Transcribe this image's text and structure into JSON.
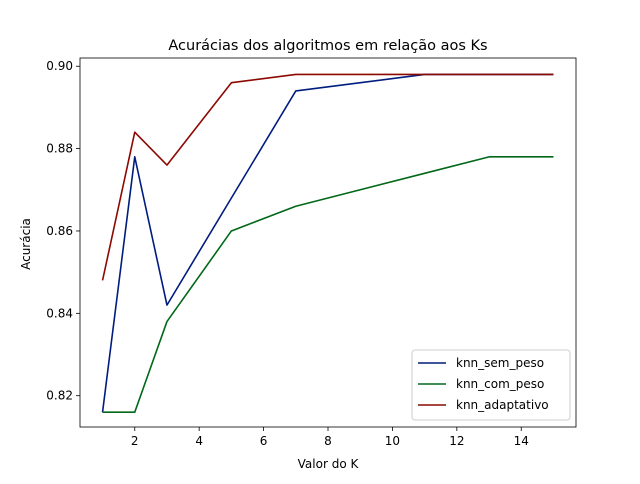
{
  "chart_data": {
    "type": "line",
    "title": "Acurácias dos algoritmos em relação aos Ks",
    "xlabel": "Valor do K",
    "ylabel": "Acurácia",
    "xlim": [
      0.3,
      15.7
    ],
    "ylim": [
      0.8124,
      0.902
    ],
    "xticks": [
      2,
      4,
      6,
      8,
      10,
      12,
      14
    ],
    "yticks": [
      0.82,
      0.84,
      0.86,
      0.88,
      0.9
    ],
    "ytick_labels": [
      "0.82",
      "0.84",
      "0.86",
      "0.88",
      "0.90"
    ],
    "grid": false,
    "legend_position": "lower-right",
    "x": [
      1,
      2,
      3,
      5,
      7,
      11,
      13,
      15
    ],
    "series": [
      {
        "name": "knn_sem_peso",
        "color": "#001c7f",
        "values": [
          0.816,
          0.878,
          0.842,
          0.868,
          0.894,
          0.898,
          0.898,
          0.898
        ]
      },
      {
        "name": "knn_com_peso",
        "color": "#006818",
        "values": [
          0.816,
          0.816,
          0.838,
          0.86,
          0.866,
          0.874,
          0.878,
          0.878
        ]
      },
      {
        "name": "knn_adaptativo",
        "color": "#8c0800",
        "values": [
          0.848,
          0.884,
          0.876,
          0.896,
          0.898,
          0.898,
          0.898,
          0.898
        ]
      }
    ]
  }
}
